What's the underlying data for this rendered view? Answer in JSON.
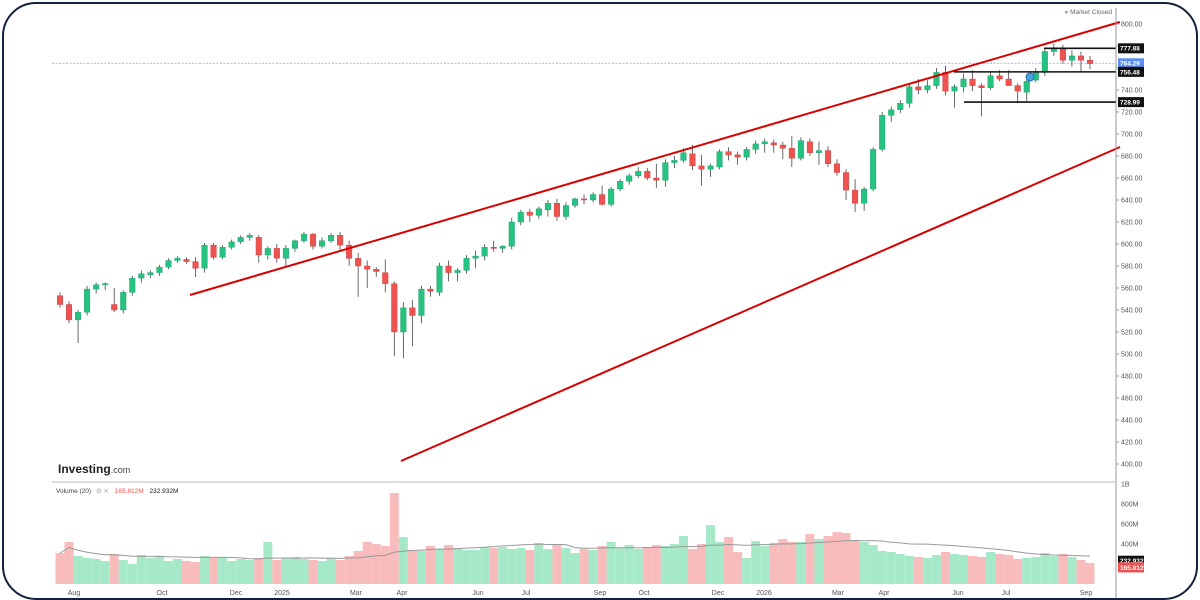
{
  "status": "Market Closed",
  "logo": {
    "brand": "Investing",
    "suffix": ".com"
  },
  "volume_legend": {
    "title": "Volume (20)",
    "value1": "165.812M",
    "value2": "232.932M"
  },
  "colors": {
    "up": "#26c281",
    "down": "#ef5350",
    "trend": "#d90000",
    "vol_up": "#a6e9c9",
    "vol_down": "#f8bcbc",
    "ma": "#999999",
    "current_line": "#5b8def"
  },
  "chart_data": {
    "type": "candlestick",
    "x_tick_labels": [
      "Aug",
      "Oct",
      "Dec",
      "2025",
      "Mar",
      "Apr",
      "Jun",
      "Jul",
      "Sep",
      "Oct",
      "Dec",
      "2026",
      "Mar",
      "Apr",
      "Jun",
      "Jul",
      "Sep"
    ],
    "y_ticks": [
      400,
      420,
      440,
      460,
      480,
      500,
      520,
      540,
      560,
      580,
      600,
      620,
      640,
      660,
      680,
      700,
      720,
      740,
      760,
      780,
      800
    ],
    "price_labels": [
      {
        "value": 777.88,
        "text": "777.88",
        "style": "dark"
      },
      {
        "value": 764.29,
        "text": "764.29",
        "style": "current"
      },
      {
        "value": 756.48,
        "text": "756.48",
        "style": "dark"
      },
      {
        "value": 728.99,
        "text": "728.99",
        "style": "dark"
      }
    ],
    "volume_ticks": [
      {
        "value": 1000,
        "text": "1B"
      },
      {
        "value": 800,
        "text": "800M"
      },
      {
        "value": 600,
        "text": "600M"
      },
      {
        "value": 400,
        "text": "400M"
      }
    ],
    "volume_labels": [
      {
        "value": 232.932,
        "text": "232.932M",
        "style": "dark"
      },
      {
        "value": 165.812,
        "text": "165.812M",
        "style": "red"
      }
    ],
    "candles": [
      [
        553,
        556,
        542,
        545
      ],
      [
        545,
        548,
        528,
        531
      ],
      [
        531,
        540,
        510,
        538
      ],
      [
        538,
        562,
        535,
        559
      ],
      [
        559,
        565,
        555,
        563
      ],
      [
        563,
        565,
        558,
        564
      ],
      [
        545,
        560,
        538,
        540
      ],
      [
        540,
        558,
        537,
        556
      ],
      [
        556,
        571,
        553,
        569
      ],
      [
        569,
        576,
        565,
        573
      ],
      [
        572,
        576,
        569,
        574
      ],
      [
        574,
        581,
        571,
        579
      ],
      [
        579,
        587,
        577,
        585
      ],
      [
        585,
        589,
        583,
        587
      ],
      [
        586,
        588,
        582,
        584
      ],
      [
        584,
        588,
        570,
        578
      ],
      [
        578,
        601,
        574,
        599
      ],
      [
        599,
        601,
        586,
        588
      ],
      [
        588,
        599,
        586,
        597
      ],
      [
        597,
        604,
        595,
        602
      ],
      [
        602,
        608,
        600,
        606
      ],
      [
        606,
        610,
        603,
        608
      ],
      [
        606,
        608,
        583,
        590
      ],
      [
        590,
        598,
        586,
        596
      ],
      [
        596,
        600,
        583,
        587
      ],
      [
        587,
        599,
        579,
        596
      ],
      [
        596,
        604,
        593,
        603
      ],
      [
        603,
        611,
        601,
        609
      ],
      [
        609,
        610,
        595,
        598
      ],
      [
        598,
        606,
        596,
        603
      ],
      [
        603,
        610,
        601,
        608
      ],
      [
        608,
        611,
        594,
        599
      ],
      [
        599,
        603,
        580,
        587
      ],
      [
        587,
        592,
        552,
        580
      ],
      [
        580,
        585,
        560,
        577
      ],
      [
        577,
        579,
        570,
        575
      ],
      [
        574,
        586,
        556,
        564
      ],
      [
        564,
        566,
        498,
        520
      ],
      [
        520,
        547,
        496,
        542
      ],
      [
        542,
        549,
        507,
        535
      ],
      [
        535,
        562,
        528,
        559
      ],
      [
        559,
        562,
        552,
        557
      ],
      [
        556,
        583,
        553,
        580
      ],
      [
        580,
        585,
        566,
        574
      ],
      [
        574,
        578,
        566,
        576
      ],
      [
        576,
        590,
        573,
        587
      ],
      [
        587,
        594,
        578,
        589
      ],
      [
        589,
        600,
        585,
        597
      ],
      [
        597,
        603,
        593,
        596
      ],
      [
        596,
        599,
        592,
        598
      ],
      [
        598,
        624,
        595,
        620
      ],
      [
        620,
        631,
        617,
        629
      ],
      [
        629,
        632,
        620,
        626
      ],
      [
        626,
        634,
        623,
        632
      ],
      [
        631,
        640,
        625,
        637
      ],
      [
        637,
        641,
        621,
        625
      ],
      [
        625,
        638,
        622,
        635
      ],
      [
        635,
        642,
        633,
        641
      ],
      [
        641,
        645,
        636,
        640
      ],
      [
        640,
        647,
        638,
        645
      ],
      [
        645,
        653,
        635,
        636
      ],
      [
        636,
        652,
        634,
        650
      ],
      [
        650,
        659,
        648,
        657
      ],
      [
        657,
        664,
        654,
        662
      ],
      [
        662,
        670,
        660,
        666
      ],
      [
        666,
        669,
        658,
        660
      ],
      [
        660,
        673,
        651,
        658
      ],
      [
        658,
        677,
        652,
        674
      ],
      [
        674,
        680,
        669,
        676
      ],
      [
        676,
        687,
        674,
        683
      ],
      [
        682,
        690,
        667,
        671
      ],
      [
        671,
        681,
        653,
        668
      ],
      [
        668,
        673,
        661,
        671
      ],
      [
        670,
        686,
        668,
        684
      ],
      [
        684,
        688,
        676,
        681
      ],
      [
        681,
        684,
        672,
        679
      ],
      [
        679,
        688,
        676,
        686
      ],
      [
        686,
        694,
        682,
        691
      ],
      [
        691,
        696,
        683,
        693
      ],
      [
        692,
        695,
        683,
        690
      ],
      [
        690,
        693,
        677,
        687
      ],
      [
        687,
        698,
        670,
        678
      ],
      [
        678,
        697,
        676,
        694
      ],
      [
        693,
        696,
        680,
        683
      ],
      [
        683,
        693,
        672,
        685
      ],
      [
        685,
        689,
        670,
        673
      ],
      [
        673,
        677,
        662,
        665
      ],
      [
        665,
        668,
        640,
        649
      ],
      [
        649,
        659,
        629,
        637
      ],
      [
        637,
        652,
        630,
        650
      ],
      [
        650,
        688,
        648,
        686
      ],
      [
        686,
        720,
        684,
        717
      ],
      [
        717,
        725,
        711,
        722
      ],
      [
        722,
        731,
        719,
        728
      ],
      [
        728,
        746,
        724,
        743
      ],
      [
        743,
        750,
        736,
        740
      ],
      [
        740,
        749,
        737,
        744
      ],
      [
        744,
        760,
        741,
        756
      ],
      [
        756,
        762,
        735,
        739
      ],
      [
        739,
        745,
        724,
        743
      ],
      [
        743,
        755,
        738,
        750
      ],
      [
        750,
        758,
        739,
        744
      ],
      [
        744,
        746,
        716,
        742
      ],
      [
        742,
        757,
        740,
        753
      ],
      [
        753,
        758,
        748,
        750
      ],
      [
        750,
        758,
        746,
        744
      ],
      [
        744,
        746,
        728,
        739
      ],
      [
        738,
        750,
        730,
        748
      ],
      [
        749,
        760,
        747,
        756
      ],
      [
        756,
        778,
        753,
        775
      ],
      [
        775,
        782,
        771,
        778
      ],
      [
        778,
        781,
        764,
        767
      ],
      [
        767,
        776,
        761,
        771
      ],
      [
        771,
        775,
        757,
        767
      ],
      [
        767,
        771,
        759,
        764
      ]
    ],
    "volumes": [
      310,
      420,
      280,
      260,
      250,
      230,
      300,
      240,
      200,
      290,
      260,
      280,
      230,
      250,
      230,
      220,
      280,
      260,
      270,
      230,
      250,
      240,
      260,
      420,
      240,
      260,
      270,
      250,
      240,
      230,
      260,
      240,
      280,
      330,
      420,
      400,
      380,
      910,
      470,
      340,
      330,
      380,
      350,
      390,
      360,
      340,
      340,
      370,
      360,
      370,
      350,
      360,
      340,
      410,
      350,
      390,
      360,
      310,
      350,
      340,
      380,
      420,
      360,
      390,
      350,
      370,
      390,
      380,
      400,
      480,
      350,
      400,
      590,
      420,
      470,
      320,
      260,
      430,
      380,
      410,
      450,
      420,
      420,
      500,
      450,
      480,
      520,
      510,
      440,
      420,
      390,
      330,
      320,
      300,
      280,
      270,
      260,
      290,
      320,
      300,
      290,
      280,
      270,
      320,
      300,
      290,
      250,
      260,
      270,
      310,
      280,
      300,
      270,
      240,
      210
    ]
  }
}
